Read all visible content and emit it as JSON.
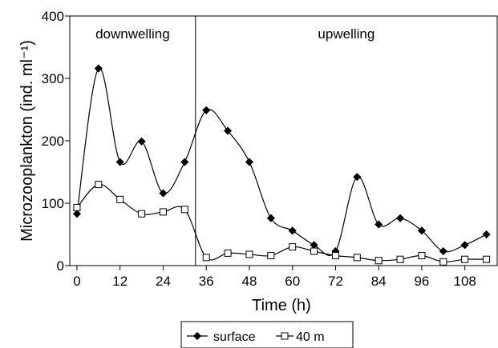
{
  "chart_data": {
    "type": "line",
    "xlabel": "Time (h)",
    "ylabel": "Microzooplankton (ind. ml⁻¹)",
    "xlim": [
      -2,
      117
    ],
    "ylim": [
      0,
      400
    ],
    "xticks": [
      0,
      12,
      24,
      36,
      48,
      60,
      72,
      84,
      96,
      108
    ],
    "yticks": [
      0,
      100,
      200,
      300,
      400
    ],
    "grid": false,
    "regions": [
      {
        "label": "downwelling",
        "x_start": -2,
        "x_end": 33
      },
      {
        "label": "upwelling",
        "x_start": 33,
        "x_end": 117
      }
    ],
    "divider_x": 33,
    "legend": {
      "position": "bottom"
    },
    "series": [
      {
        "name": "surface",
        "marker": "filled-diamond",
        "color": "#000000",
        "x": [
          0,
          6,
          12,
          18,
          24,
          30,
          36,
          42,
          48,
          54,
          60,
          66,
          72,
          78,
          84,
          90,
          96,
          102,
          108,
          114
        ],
        "values": [
          83,
          316,
          166,
          199,
          116,
          166,
          249,
          216,
          166,
          76,
          56,
          33,
          23,
          142,
          66,
          76,
          56,
          23,
          33,
          50
        ]
      },
      {
        "name": "40 m",
        "marker": "open-square",
        "color": "#000000",
        "x": [
          0,
          6,
          12,
          18,
          24,
          30,
          36,
          42,
          48,
          54,
          60,
          66,
          72,
          78,
          84,
          90,
          96,
          102,
          108,
          114
        ],
        "values": [
          93,
          130,
          106,
          83,
          86,
          90,
          13,
          20,
          18,
          16,
          30,
          23,
          16,
          13,
          8,
          10,
          16,
          6,
          10,
          10
        ]
      }
    ]
  }
}
